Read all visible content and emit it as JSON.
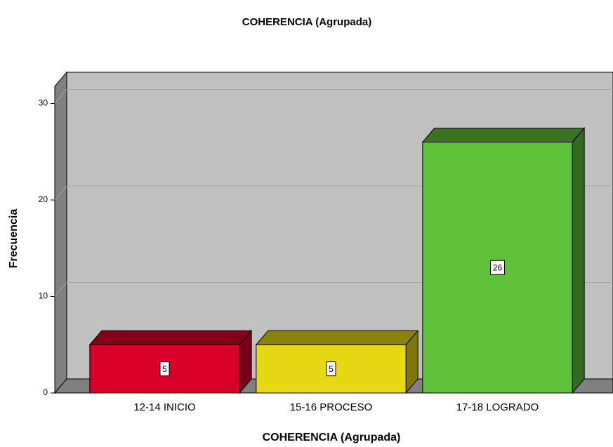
{
  "chart_data": {
    "type": "bar",
    "title": "COHERENCIA (Agrupada)",
    "x_label": "COHERENCIA (Agrupada)",
    "y_label": "Frecuencia",
    "categories": [
      "12-14 INICIO",
      "15-16 PROCESO",
      "17-18 LOGRADO"
    ],
    "values": [
      5,
      5,
      26
    ],
    "colors": [
      "#d8002b",
      "#e6d812",
      "#5fc13a"
    ],
    "ylim": [
      0,
      32
    ],
    "yticks": [
      0,
      10,
      20,
      30
    ],
    "grid": true
  }
}
